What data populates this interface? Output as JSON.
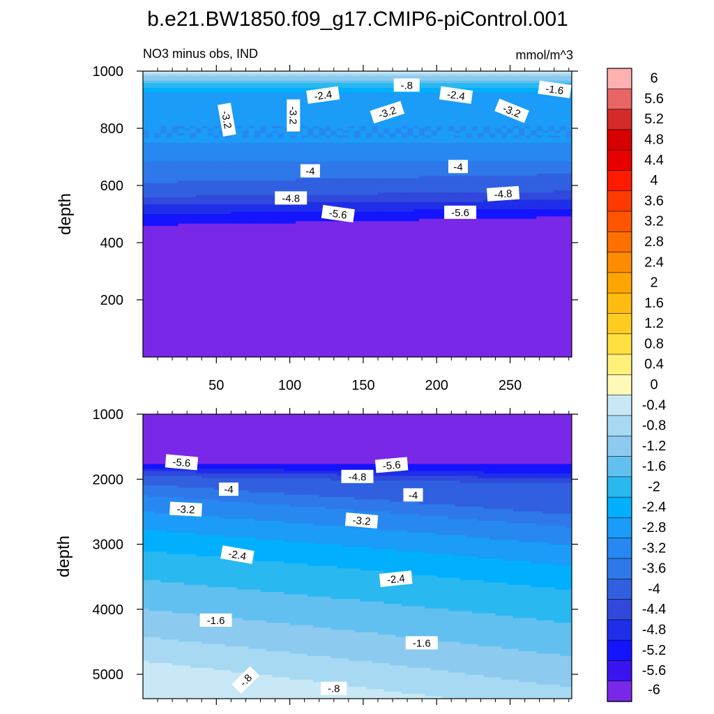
{
  "title": "b.e21.BW1850.f09_g17.CMIP6-piControl.001",
  "subtitle_left": "NO3 minus obs, IND",
  "subtitle_right": "mmol/m^3",
  "chart_data": {
    "type": "heatmap",
    "colorbar": {
      "labels": [
        "6",
        "5.6",
        "5.2",
        "4.8",
        "4.4",
        "4",
        "3.6",
        "3.2",
        "2.8",
        "2.4",
        "2",
        "1.6",
        "1.2",
        "0.8",
        "0.4",
        "0",
        "-0.4",
        "-0.8",
        "-1.2",
        "-1.6",
        "-2",
        "-2.4",
        "-2.8",
        "-3.2",
        "-3.6",
        "-4",
        "-4.4",
        "-4.8",
        "-5.2",
        "-5.6",
        "-6"
      ],
      "colors": [
        "#ffb0b0",
        "#e86565",
        "#d42a2a",
        "#d60000",
        "#e80000",
        "#ff1a00",
        "#ff3a00",
        "#ff5500",
        "#ff7000",
        "#ff8c00",
        "#ffa500",
        "#ffbb10",
        "#ffcc22",
        "#ffe040",
        "#fff07a",
        "#fff8b8",
        "#c8e8f5",
        "#a7d9f2",
        "#8ccaf0",
        "#62c0f0",
        "#2ab8f0",
        "#00b0ff",
        "#1a9cf8",
        "#2688f0",
        "#2e78ea",
        "#3060e0",
        "#3048dc",
        "#1f2ee8",
        "#1414ff",
        "#3a14f0",
        "#7a28e8"
      ]
    },
    "panels": [
      {
        "name": "upper",
        "ylabel": "depth",
        "ylim": [
          1000,
          0
        ],
        "y_ticks": [
          "200",
          "400",
          "600",
          "800",
          "1000"
        ],
        "xlim": [
          0,
          292
        ],
        "x_ticks": [
          "50",
          "100",
          "150",
          "200",
          "250"
        ],
        "contour_labels": [
          "-.8",
          "-2.4",
          "-2.4",
          "-1.6",
          "-3.2",
          "-3.2",
          "-3.2",
          "-3.2",
          "-4",
          "-4",
          "-4.8",
          "-4.8",
          "-5.6",
          "-5.6"
        ]
      },
      {
        "name": "lower",
        "ylabel": "depth",
        "ylim": [
          1000,
          5375
        ],
        "y_ticks": [
          "1000",
          "2000",
          "3000",
          "4000",
          "5000"
        ],
        "xlim": [
          0,
          292
        ],
        "contour_labels": [
          "-5.6",
          "-5.6",
          "-4.8",
          "-4",
          "-4",
          "-3.2",
          "-3.2",
          "-2.4",
          "-2.4",
          "-1.6",
          "-1.6",
          "-.8",
          "-.8"
        ]
      }
    ]
  }
}
